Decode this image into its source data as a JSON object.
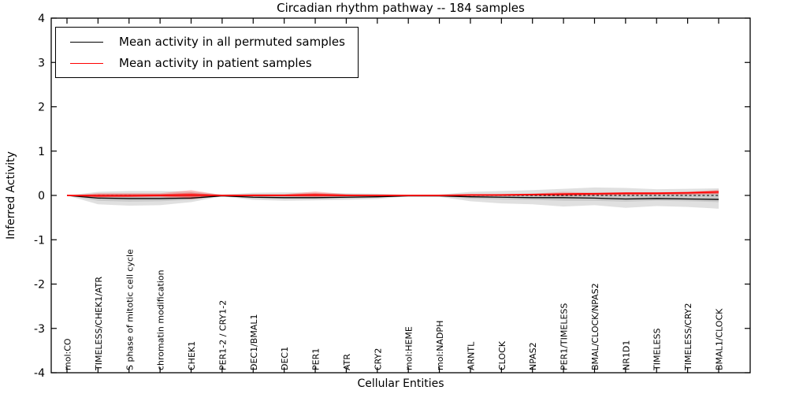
{
  "chart_data": {
    "type": "line",
    "title": "Circadian rhythm pathway -- 184 samples",
    "xlabel": "Cellular Entities",
    "ylabel": "Inferred Activity",
    "ylim": [
      -4,
      4
    ],
    "yticks": [
      -4,
      -3,
      -2,
      -1,
      0,
      1,
      2,
      3,
      4
    ],
    "ytick_labels": [
      "-4",
      "-3",
      "-2",
      "-1",
      "0",
      "1",
      "2",
      "3",
      "4"
    ],
    "grid": false,
    "legend": {
      "position": "upper left",
      "entries": [
        {
          "label": "Mean activity in all permuted samples",
          "color": "#000000"
        },
        {
          "label": "Mean activity in patient samples",
          "color": "#ff0000"
        }
      ]
    },
    "categories": [
      "mol:CO",
      "TIMELESS/CHEK1/ATR",
      "S phase of mitotic cell cycle",
      "chromatin modification",
      "CHEK1",
      "PER1-2 / CRY1-2",
      "DEC1/BMAL1",
      "DEC1",
      "PER1",
      "ATR",
      "CRY2",
      "mol:HEME",
      "mol:NADPH",
      "ARNTL",
      "CLOCK",
      "NPAS2",
      "PER1/TIMELESS",
      "BMAL/CLOCK/NPAS2",
      "NR1D1",
      "TIMELESS",
      "TIMELESS/CRY2",
      "BMAL1/CLOCK"
    ],
    "series": [
      {
        "name": "Mean activity in all permuted samples",
        "color": "#000000",
        "width": 1.3,
        "values": [
          0,
          -0.06,
          -0.07,
          -0.07,
          -0.06,
          -0.01,
          -0.04,
          -0.05,
          -0.05,
          -0.04,
          -0.03,
          -0.01,
          -0.01,
          -0.03,
          -0.04,
          -0.05,
          -0.05,
          -0.06,
          -0.08,
          -0.07,
          -0.08,
          -0.09
        ]
      },
      {
        "name": "Mean activity in patient samples",
        "color": "#ff0000",
        "width": 1.8,
        "values": [
          0,
          -0.01,
          -0.01,
          0,
          0.01,
          0,
          0,
          0,
          0.01,
          0,
          0,
          0,
          0,
          0.01,
          0.01,
          0.02,
          0.03,
          0.04,
          0.05,
          0.05,
          0.06,
          0.08
        ]
      }
    ],
    "zero_line": {
      "y": 0,
      "style": "dashed",
      "color": "#000000"
    },
    "bands": [
      {
        "name": "permuted-range-outer",
        "color": "rgba(0,0,0,0.12)",
        "lower": [
          0,
          -0.2,
          -0.23,
          -0.22,
          -0.15,
          -0.02,
          -0.1,
          -0.12,
          -0.11,
          -0.1,
          -0.08,
          -0.02,
          -0.03,
          -0.13,
          -0.18,
          -0.2,
          -0.25,
          -0.22,
          -0.28,
          -0.24,
          -0.26,
          -0.3
        ],
        "upper": [
          0,
          0.08,
          0.1,
          0.1,
          0.09,
          0.02,
          0.06,
          0.07,
          0.06,
          0.05,
          0.04,
          0.01,
          0.02,
          0.08,
          0.1,
          0.12,
          0.15,
          0.18,
          0.17,
          0.14,
          0.15,
          0.16
        ]
      },
      {
        "name": "permuted-range-inner",
        "color": "rgba(0,0,0,0.10)",
        "lower": [
          0,
          -0.12,
          -0.14,
          -0.13,
          -0.1,
          -0.01,
          -0.07,
          -0.08,
          -0.08,
          -0.07,
          -0.05,
          -0.01,
          -0.02,
          -0.07,
          -0.09,
          -0.1,
          -0.12,
          -0.12,
          -0.14,
          -0.12,
          -0.13,
          -0.15
        ],
        "upper": [
          0,
          0.02,
          0.03,
          0.03,
          0.03,
          0.01,
          0.02,
          0.02,
          0.02,
          0.02,
          0.01,
          0.01,
          0.01,
          0.02,
          0.03,
          0.04,
          0.05,
          0.06,
          0.05,
          0.04,
          0.05,
          0.05
        ]
      },
      {
        "name": "patient-range-outer",
        "color": "rgba(255,0,0,0.22)",
        "lower": [
          0,
          -0.05,
          -0.04,
          -0.04,
          -0.09,
          -0.01,
          -0.02,
          -0.02,
          -0.04,
          -0.02,
          -0.01,
          0,
          0,
          -0.01,
          -0.01,
          -0.01,
          -0.02,
          0,
          0.01,
          0.02,
          0.02,
          0.03
        ],
        "upper": [
          0,
          0.05,
          0.05,
          0.05,
          0.12,
          0.01,
          0.03,
          0.03,
          0.09,
          0.03,
          0.02,
          0.01,
          0.01,
          0.02,
          0.03,
          0.04,
          0.08,
          0.06,
          0.07,
          0.07,
          0.08,
          0.13
        ]
      },
      {
        "name": "patient-range-inner",
        "color": "rgba(255,0,0,0.35)",
        "lower": [
          0,
          -0.03,
          -0.02,
          -0.02,
          -0.05,
          -0.005,
          -0.01,
          -0.01,
          -0.02,
          -0.01,
          -0.005,
          0,
          0,
          -0.005,
          -0.005,
          0,
          0,
          0.01,
          0.02,
          0.02,
          0.03,
          0.04
        ],
        "upper": [
          0,
          0.03,
          0.03,
          0.03,
          0.06,
          0.005,
          0.02,
          0.02,
          0.05,
          0.02,
          0.01,
          0.005,
          0.005,
          0.01,
          0.02,
          0.03,
          0.04,
          0.04,
          0.05,
          0.05,
          0.06,
          0.08
        ]
      }
    ]
  }
}
